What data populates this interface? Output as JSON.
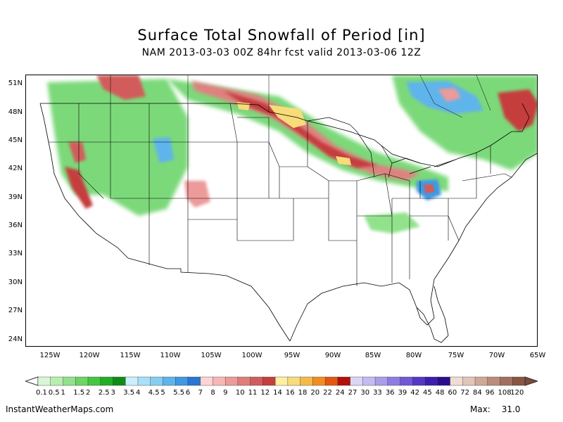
{
  "title": "Surface Total Snowfall of Period [in]",
  "subtitle": "NAM 2013-03-03 00Z 84hr fcst valid 2013-03-06 12Z",
  "lat_labels": [
    "51N",
    "48N",
    "45N",
    "42N",
    "39N",
    "36N",
    "33N",
    "30N",
    "27N",
    "24N"
  ],
  "lon_labels": [
    "125W",
    "120W",
    "115W",
    "110W",
    "105W",
    "100W",
    "95W",
    "90W",
    "85W",
    "80W",
    "75W",
    "70W",
    "65W"
  ],
  "legend": {
    "labels": [
      "0.1",
      "0.5",
      "1",
      "1.5",
      "2",
      "2.5",
      "3",
      "3.5",
      "4",
      "4.5",
      "5",
      "5.5",
      "6",
      "7",
      "8",
      "9",
      "10",
      "11",
      "12",
      "14",
      "16",
      "18",
      "20",
      "22",
      "24",
      "27",
      "30",
      "33",
      "36",
      "39",
      "42",
      "45",
      "48",
      "60",
      "72",
      "84",
      "96",
      "108",
      "120"
    ],
    "colors": [
      "#d9f7d6",
      "#b6efb0",
      "#91e28b",
      "#6dd567",
      "#45c742",
      "#22ae24",
      "#0f8c13",
      "#cdeefc",
      "#a7e0f8",
      "#84cef2",
      "#5fb4ec",
      "#4197e2",
      "#2a76d2",
      "#ffd4d4",
      "#f7b7b7",
      "#ec9a9a",
      "#df7c7c",
      "#d25c5c",
      "#c53e3e",
      "#fff0a0",
      "#f8dc7a",
      "#f5bb48",
      "#f08e22",
      "#e25810",
      "#b3100a",
      "#dcd6f5",
      "#c6bbf0",
      "#ab9deb",
      "#8f7ce2",
      "#7059d6",
      "#5537c5",
      "#3d1fae",
      "#2a0d8d",
      "#f0dcd4",
      "#e3c4b8",
      "#cfa898",
      "#ba8c7a",
      "#a2705e",
      "#8a5541"
    ]
  },
  "footer": {
    "site": "InstantWeatherMaps.com",
    "max_label": "Max:",
    "max_value": "31.0"
  }
}
